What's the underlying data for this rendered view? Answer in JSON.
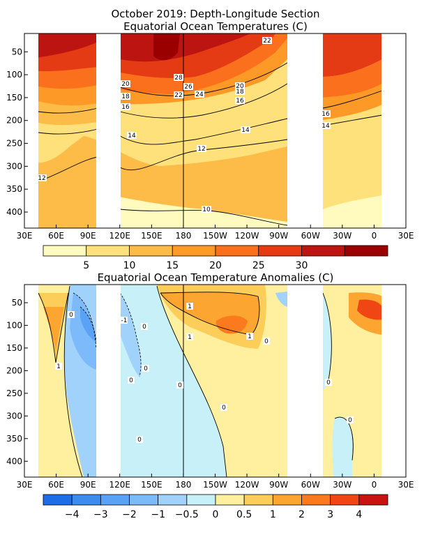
{
  "chart_data": [
    {
      "type": "heatmap",
      "title": "October 2019: Depth-Longitude Section",
      "subtitle": "Equatorial Ocean Temperatures (C)",
      "x_ticks": [
        "30E",
        "60E",
        "90E",
        "120E",
        "150E",
        "180",
        "150W",
        "120W",
        "90W",
        "60W",
        "30W",
        "0",
        "30E"
      ],
      "y_ticks": [
        "50",
        "100",
        "150",
        "200",
        "250",
        "300",
        "350",
        "400"
      ],
      "x_range_degE": [
        30,
        390
      ],
      "y_range_m": [
        10,
        435
      ],
      "data_gaps_degE": [
        [
          100,
          120
        ],
        [
          280,
          312
        ],
        [
          370,
          390
        ]
      ],
      "levels": [
        5,
        10,
        15,
        20,
        25,
        30
      ],
      "colorbar_labels": [
        "5",
        "10",
        "15",
        "20",
        "25",
        "30"
      ],
      "colors": [
        "#fffbbe",
        "#fee17a",
        "#fdbb47",
        "#fd9a27",
        "#fb701c",
        "#e43b14",
        "#bc1410",
        "#9b0000"
      ],
      "contour_labels": [
        "22",
        "28",
        "26",
        "24",
        "22",
        "20",
        "18",
        "16",
        "20",
        "18",
        "16",
        "16",
        "14",
        "14",
        "14",
        "12",
        "12",
        "10"
      ],
      "isotherms_m": [
        {
          "label": "28",
          "depth": [
            40,
            70,
            85,
            95,
            90,
            70,
            50
          ]
        },
        {
          "label": "20",
          "depth": [
            75,
            112,
            130,
            135,
            120,
            85,
            60
          ]
        },
        {
          "label": "16",
          "depth": [
            110,
            145,
            160,
            165,
            150,
            125,
            95
          ]
        },
        {
          "label": "14",
          "depth": [
            145,
            185,
            200,
            200,
            195,
            180,
            165
          ]
        },
        {
          "label": "12",
          "depth": [
            220,
            265,
            270,
            255,
            240,
            225,
            210
          ]
        },
        {
          "label": "10",
          "depth": [
            null,
            340,
            370,
            400,
            420,
            430,
            435
          ]
        }
      ]
    },
    {
      "type": "heatmap",
      "title": "Equatorial Ocean Temperature Anomalies (C)",
      "x_ticks": [
        "30E",
        "60E",
        "90E",
        "120E",
        "150E",
        "180",
        "150W",
        "120W",
        "90W",
        "60W",
        "30W",
        "0",
        "30E"
      ],
      "y_ticks": [
        "50",
        "100",
        "150",
        "200",
        "250",
        "300",
        "350",
        "400"
      ],
      "x_range_degE": [
        30,
        390
      ],
      "y_range_m": [
        10,
        435
      ],
      "levels": [
        -4,
        -3,
        -2,
        -1,
        -0.5,
        0,
        0.5,
        1,
        2,
        3,
        4
      ],
      "colorbar_labels": [
        "−4",
        "−3",
        "−2",
        "−1",
        "−0.5",
        "0",
        "0.5",
        "1",
        "2",
        "3",
        "4"
      ],
      "colors": [
        "#1d6ee6",
        "#3c8cf0",
        "#5aa2f6",
        "#7dbaf9",
        "#a0d2fb",
        "#c8f0f9",
        "#fff0a0",
        "#fdcd5a",
        "#fca531",
        "#fb7a1e",
        "#f04614",
        "#c81410"
      ],
      "contour_labels": [
        "0",
        "-1",
        "1",
        "1",
        "1",
        "1",
        "0",
        "0",
        "0",
        "0",
        "0",
        "0",
        "0",
        "0",
        "0"
      ]
    }
  ]
}
